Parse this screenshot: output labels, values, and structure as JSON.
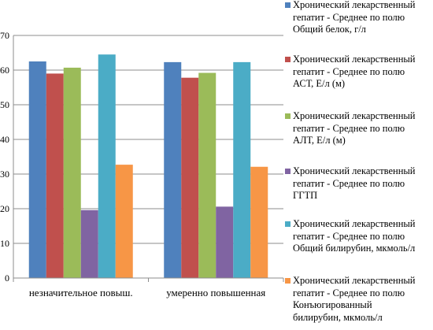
{
  "chart_data": {
    "type": "bar",
    "categories": [
      "незначительное повыш.",
      "умеренно повышенная"
    ],
    "ylim": [
      0,
      70
    ],
    "yticks": [
      0,
      10,
      20,
      30,
      40,
      50,
      60,
      70
    ],
    "grid": true,
    "legend_position": "right",
    "series": [
      {
        "name": "Хронический лекарственный гепатит - Среднее по полю Общий белок, г/л",
        "color": "#4F81BD",
        "values": [
          62.5,
          62.3
        ]
      },
      {
        "name": "Хронический лекарственный гепатит - Среднее по полю АСТ, Е/л (м)",
        "color": "#C0504D",
        "values": [
          59.0,
          57.8
        ]
      },
      {
        "name": "Хронический лекарственный гепатит - Среднее по полю АЛТ, Е/л (м)",
        "color": "#9BBB59",
        "values": [
          60.7,
          59.2
        ]
      },
      {
        "name": "Хронический лекарственный гепатит - Среднее по полю ГГТП",
        "color": "#8064A2",
        "values": [
          19.6,
          20.6
        ]
      },
      {
        "name": "Хронический лекарственный гепатит - Среднее по полю Общий билирубин, мкмоль/л",
        "color": "#4BACC6",
        "values": [
          64.5,
          62.3
        ]
      },
      {
        "name": "Хронический лекарственный гепатит - Среднее по полю Конъюгированный билирубин, мкмоль/л",
        "color": "#F79646",
        "values": [
          32.7,
          32.1
        ]
      }
    ]
  },
  "legend": {
    "items": [
      {
        "label": "Хронический лекарственный\nгепатит - Среднее по полю\nОбщий белок, г/л",
        "color": "#4F81BD"
      },
      {
        "label": "Хронический лекарственный\nгепатит - Среднее по полю\nАСТ, Е/л (м)",
        "color": "#C0504D"
      },
      {
        "label": "Хронический лекарственный\nгепатит - Среднее по полю\nАЛТ, Е/л (м)",
        "color": "#9BBB59"
      },
      {
        "label": "Хронический лекарственный\nгепатит - Среднее по полю\nГГТП",
        "color": "#8064A2"
      },
      {
        "label": "Хронический лекарственный\nгепатит - Среднее по полю\nОбщий билирубин, мкмоль/л",
        "color": "#4BACC6"
      },
      {
        "label": "Хронический лекарственный\nгепатит - Среднее по полю\nКонъюгированный\nбилирубин, мкмоль/л",
        "color": "#F79646"
      }
    ]
  }
}
